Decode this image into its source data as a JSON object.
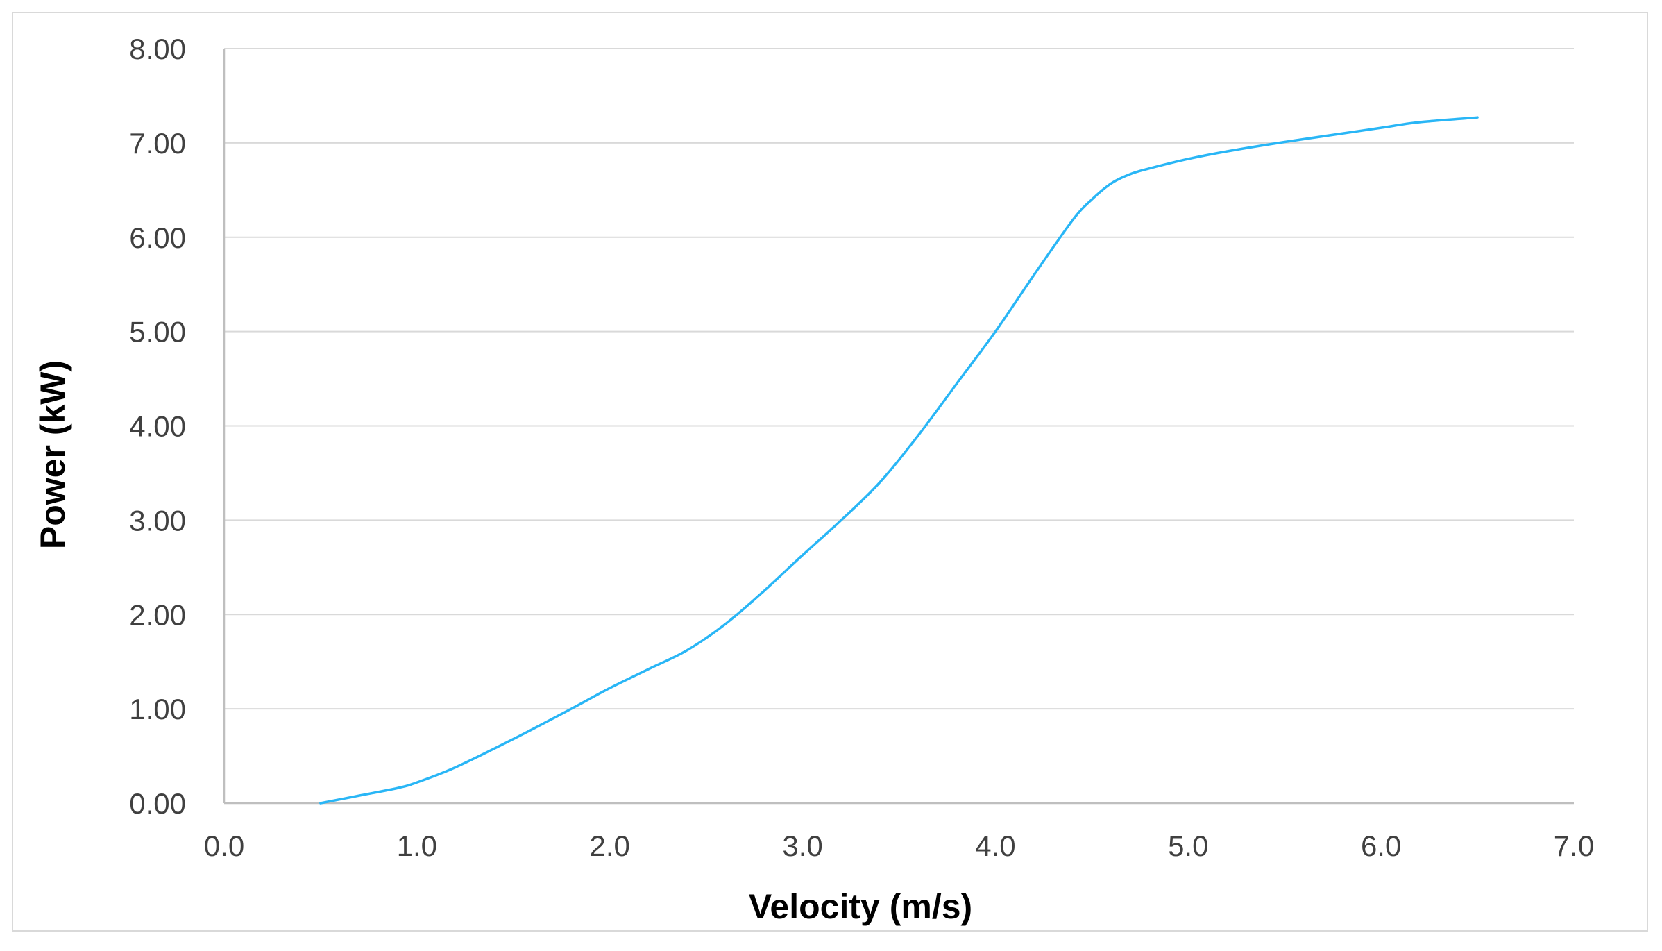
{
  "chart_data": {
    "type": "line",
    "title": "",
    "xlabel": "Velocity (m/s)",
    "ylabel": "Power (kW)",
    "xlim": [
      0,
      7
    ],
    "ylim": [
      0,
      8
    ],
    "x_ticks": [
      "0.0",
      "1.0",
      "2.0",
      "3.0",
      "4.0",
      "5.0",
      "6.0",
      "7.0"
    ],
    "y_ticks": [
      "0.00",
      "1.00",
      "2.00",
      "3.00",
      "4.00",
      "5.00",
      "6.00",
      "7.00",
      "8.00"
    ],
    "grid": true,
    "legend": "none",
    "series": [
      {
        "name": "Power",
        "color": "#29b6f6",
        "x": [
          0.5,
          0.7,
          0.9,
          1.0,
          1.2,
          1.5,
          1.8,
          2.0,
          2.2,
          2.4,
          2.6,
          2.8,
          3.0,
          3.2,
          3.4,
          3.6,
          3.8,
          4.0,
          4.2,
          4.4,
          4.5,
          4.6,
          4.7,
          4.8,
          5.0,
          5.2,
          5.5,
          5.8,
          6.0,
          6.2,
          6.5
        ],
        "values": [
          0.0,
          0.08,
          0.16,
          0.22,
          0.38,
          0.68,
          1.0,
          1.22,
          1.42,
          1.62,
          1.9,
          2.25,
          2.63,
          3.0,
          3.4,
          3.9,
          4.45,
          5.0,
          5.6,
          6.18,
          6.4,
          6.57,
          6.67,
          6.73,
          6.83,
          6.91,
          7.01,
          7.1,
          7.16,
          7.22,
          7.27
        ]
      }
    ]
  }
}
